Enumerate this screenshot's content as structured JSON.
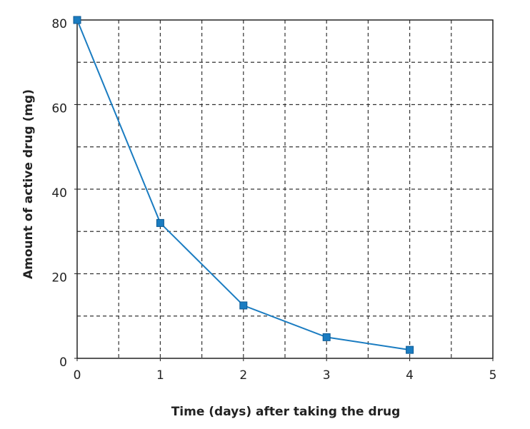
{
  "chart_data": {
    "type": "line",
    "xlabel": "Time (days) after taking the drug",
    "ylabel": "Amount of active drug (mg)",
    "series": [
      {
        "color": "#1a7cc1",
        "x": [
          0,
          1,
          2,
          3,
          4
        ],
        "values": [
          80,
          32,
          12.5,
          5,
          2
        ]
      }
    ],
    "xlim": [
      0,
      5
    ],
    "xticks": [
      0,
      1,
      2,
      3,
      4,
      5
    ],
    "ylim": [
      0,
      80
    ],
    "yticks": [
      0,
      20,
      40,
      60,
      80
    ],
    "xgrid": [
      0.5,
      1,
      1.5,
      2,
      2.5,
      3,
      3.5,
      4,
      4.5
    ],
    "ygrid": [
      10,
      20,
      30,
      40,
      50,
      60,
      70
    ],
    "grid": true,
    "marker": "square"
  }
}
